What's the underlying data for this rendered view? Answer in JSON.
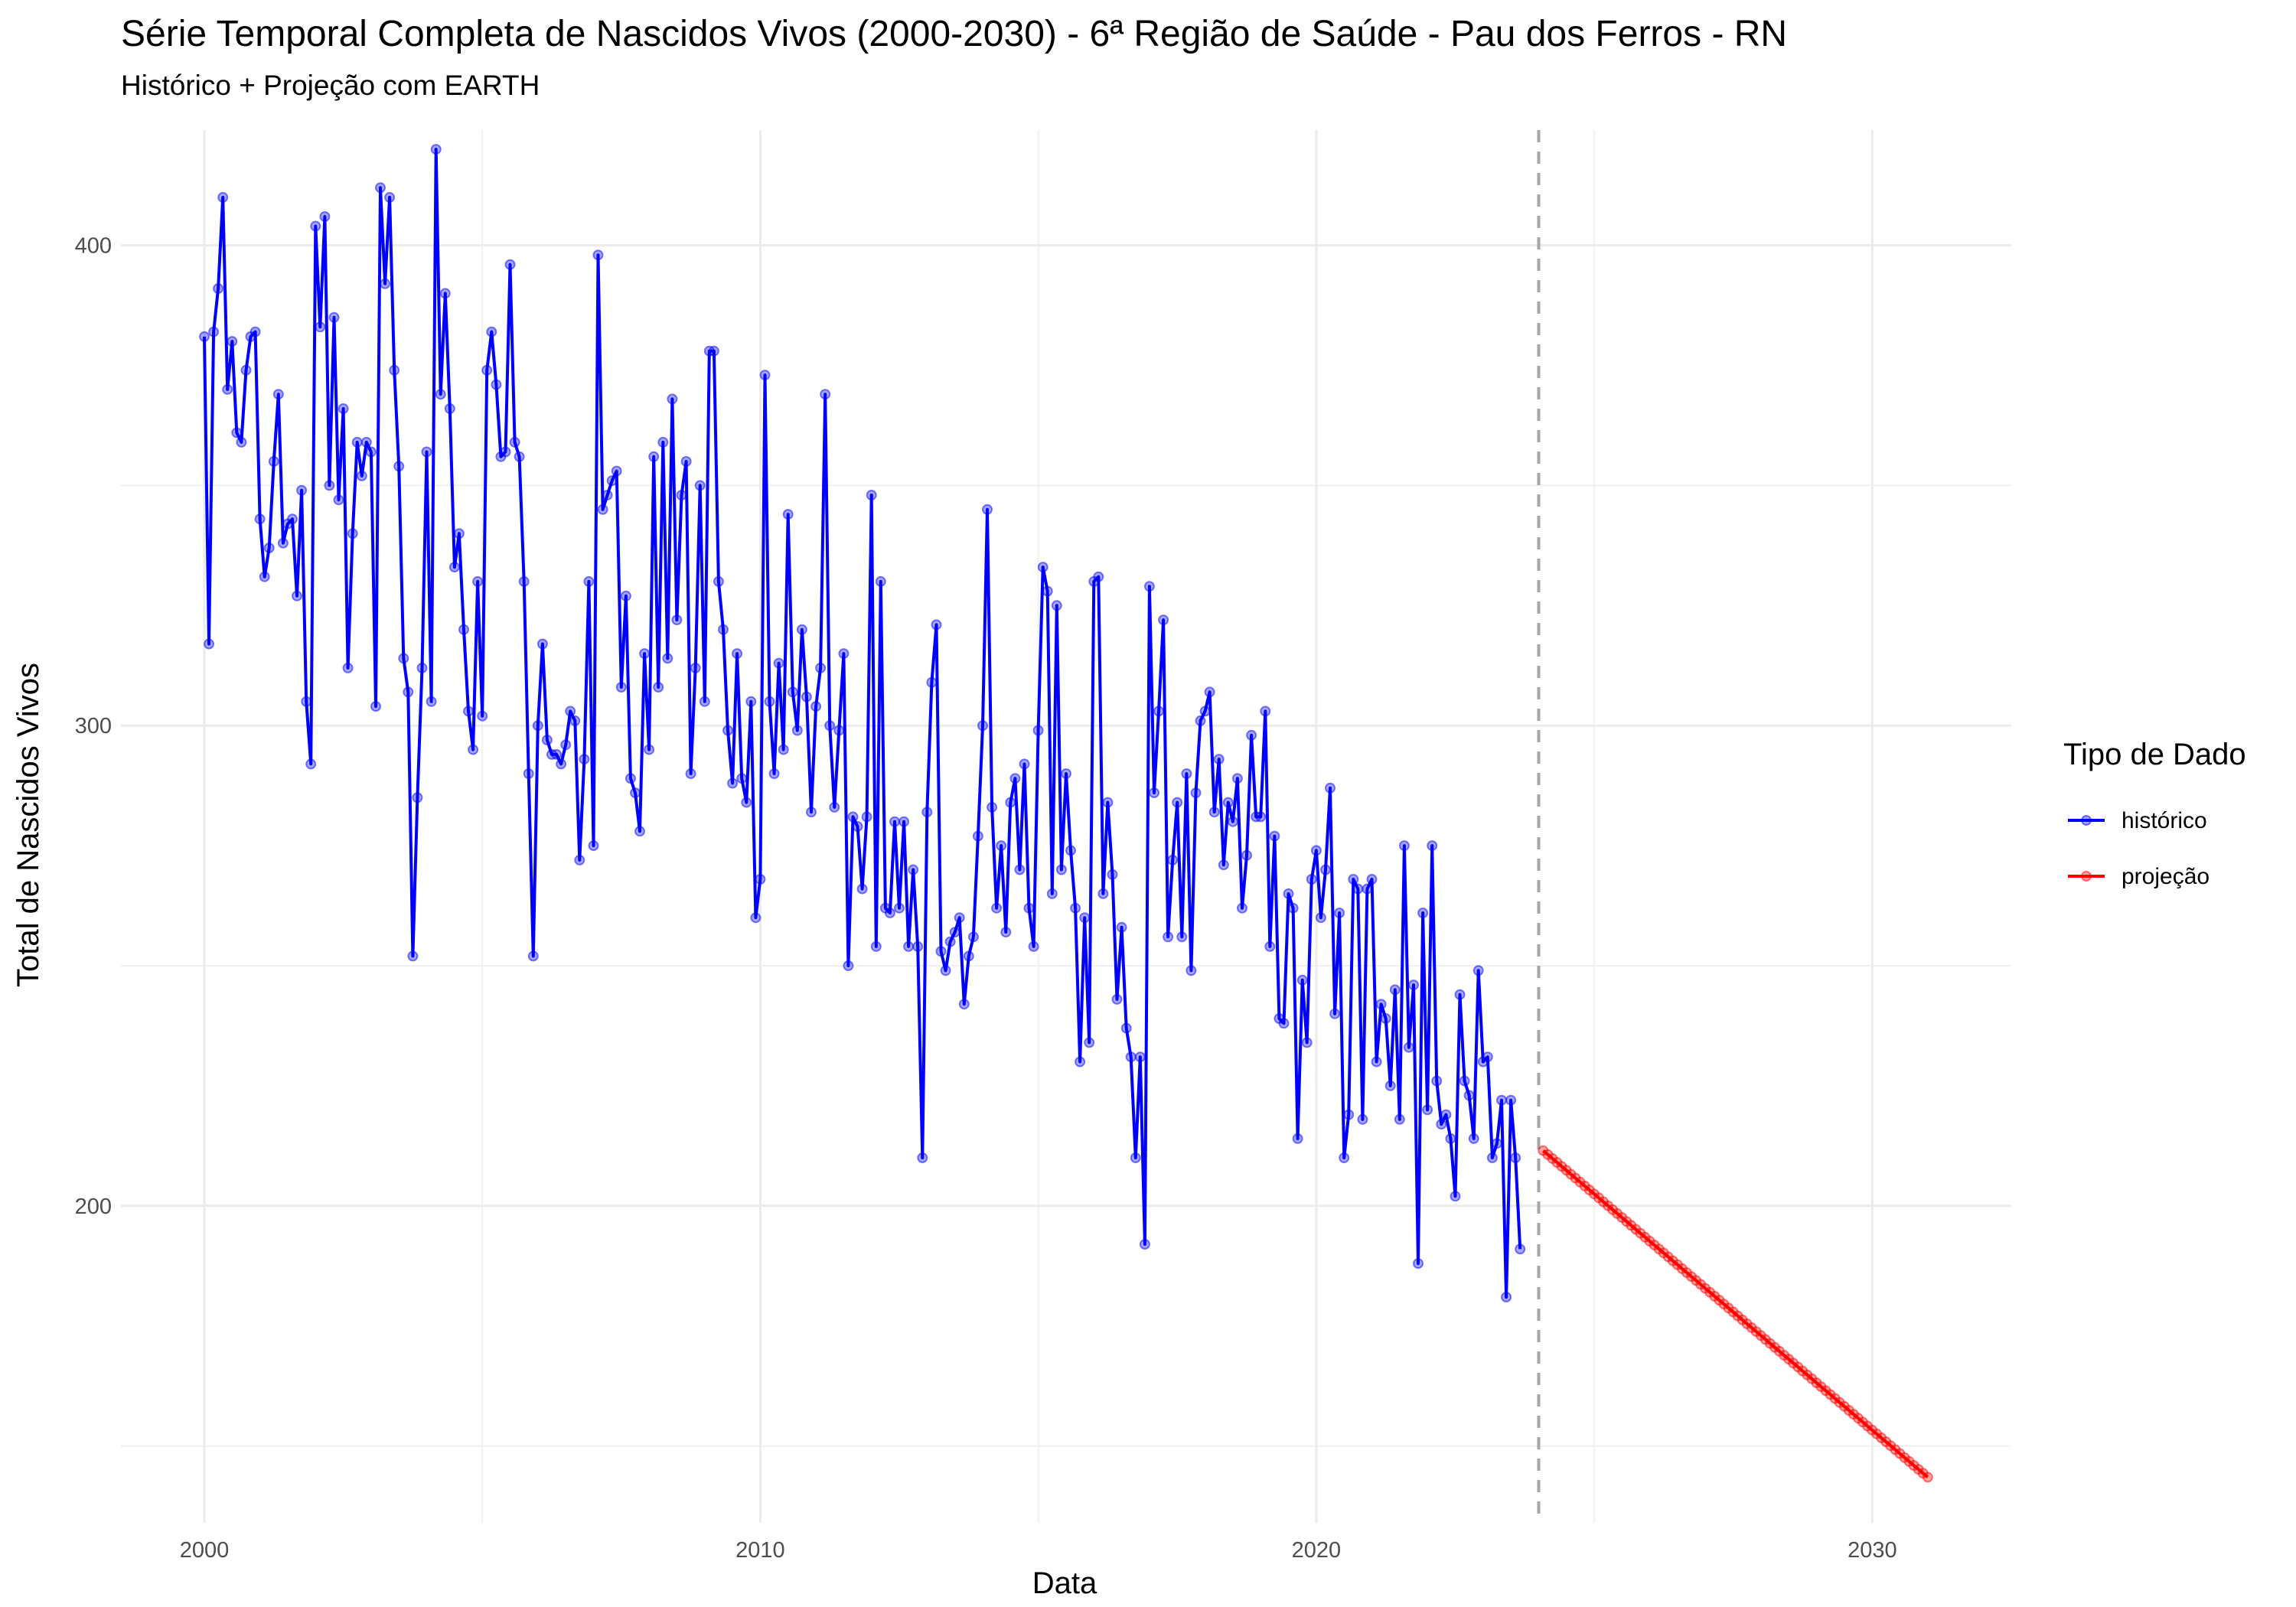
{
  "chart_data": {
    "type": "line",
    "title": "Série Temporal Completa de Nascidos Vivos (2000-2030) -  6ª Região de Saúde - Pau dos Ferros - RN",
    "subtitle": "Histórico + Projeção com EARTH",
    "xlabel": "Data",
    "ylabel": "Total de Nascidos Vivos",
    "xlim": [
      1998.5,
      2032.5
    ],
    "ylim": [
      134,
      424
    ],
    "x_ticks": [
      2000,
      2010,
      2020,
      2030
    ],
    "x_tick_labels": [
      "2000",
      "2010",
      "2020",
      "2030"
    ],
    "y_ticks": [
      200,
      300,
      400
    ],
    "y_tick_labels": [
      "200",
      "300",
      "400"
    ],
    "grid": true,
    "cutoff_line": {
      "x": 2024.0,
      "style": "dashed",
      "color": "#a6a6a6"
    },
    "legend": {
      "title": "Tipo de Dado",
      "placement": "right",
      "entries": [
        {
          "label": "histórico",
          "color": "#0000ff"
        },
        {
          "label": "projeção",
          "color": "#ff0000"
        }
      ]
    },
    "series": [
      {
        "name": "histórico",
        "color": "#0000ff",
        "x_start": 2000.0,
        "step": 0.08333,
        "values": [
          381,
          317,
          382,
          391,
          410,
          370,
          380,
          361,
          359,
          374,
          381,
          382,
          343,
          331,
          337,
          355,
          369,
          338,
          342,
          343,
          327,
          349,
          305,
          292,
          404,
          383,
          406,
          350,
          385,
          347,
          366,
          312,
          340,
          359,
          352,
          359,
          357,
          304,
          412,
          392,
          410,
          374,
          354,
          314,
          307,
          252,
          285,
          312,
          357,
          305,
          420,
          369,
          390,
          366,
          333,
          340,
          320,
          303,
          295,
          330,
          302,
          374,
          382,
          371,
          356,
          357,
          396,
          359,
          356,
          330,
          290,
          252,
          300,
          317,
          297,
          294,
          294,
          292,
          296,
          303,
          301,
          272,
          293,
          330,
          275,
          398,
          345,
          348,
          351,
          353,
          308,
          327,
          289,
          286,
          278,
          315,
          295,
          356,
          308,
          359,
          314,
          368,
          322,
          348,
          355,
          290,
          312,
          350,
          305,
          378,
          378,
          330,
          320,
          299,
          288,
          315,
          289,
          284,
          305,
          260,
          268,
          373,
          305,
          290,
          313,
          295,
          344,
          307,
          299,
          320,
          306,
          282,
          304,
          312,
          369,
          300,
          283,
          299,
          315,
          250,
          281,
          279,
          266,
          281,
          348,
          254,
          330,
          262,
          261,
          280,
          262,
          280,
          254,
          270,
          254,
          210,
          282,
          309,
          321,
          253,
          249,
          255,
          257,
          260,
          242,
          252,
          256,
          277,
          300,
          345,
          283,
          262,
          275,
          257,
          284,
          289,
          270,
          292,
          262,
          254,
          299,
          333,
          328,
          265,
          325,
          270,
          290,
          274,
          262,
          230,
          260,
          234,
          330,
          331,
          265,
          284,
          269,
          243,
          258,
          237,
          231,
          210,
          231,
          192,
          329,
          286,
          303,
          322,
          256,
          272,
          284,
          256,
          290,
          249,
          286,
          301,
          303,
          307,
          282,
          293,
          271,
          284,
          280,
          289,
          262,
          273,
          298,
          281,
          281,
          303,
          254,
          277,
          239,
          238,
          265,
          262,
          214,
          247,
          234,
          268,
          274,
          260,
          270,
          287,
          240,
          261,
          210,
          219,
          268,
          266,
          218,
          266,
          268,
          230,
          242,
          239,
          225,
          245,
          218,
          275,
          233,
          246,
          188,
          261,
          220,
          275,
          226,
          217,
          219,
          214,
          202,
          244,
          226,
          223,
          214,
          249,
          230,
          231,
          210,
          213,
          222,
          181,
          222,
          210,
          191
        ]
      },
      {
        "name": "projeção",
        "color": "#ff0000",
        "x_start": 2024.08,
        "step": 0.08333,
        "start_value": 211.5,
        "end_value": 143.5,
        "count": 84
      }
    ]
  }
}
